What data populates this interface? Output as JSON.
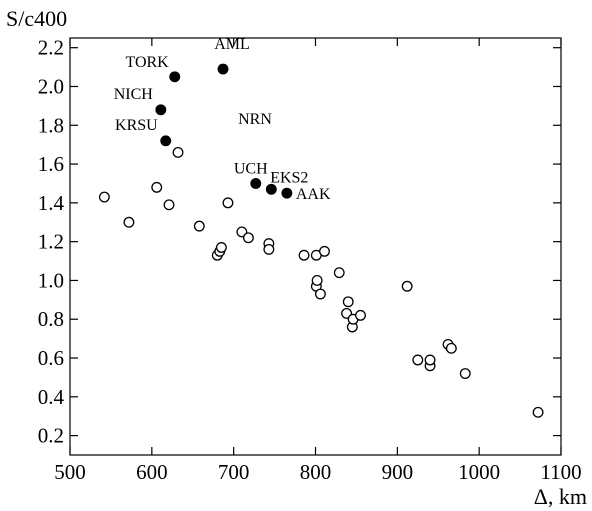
{
  "chart_data": {
    "type": "scatter",
    "ylabel": "S/c400",
    "xlabel": "Δ, km",
    "xlim": [
      500,
      1100
    ],
    "ylim": [
      0.1,
      2.25
    ],
    "xticks": [
      "500",
      "600",
      "700",
      "800",
      "900",
      "1000",
      "1100"
    ],
    "yticks": [
      "0.2",
      "0.4",
      "0.6",
      "0.8",
      "1.0",
      "1.2",
      "1.4",
      "1.6",
      "1.8",
      "2.0",
      "2.2"
    ],
    "grid": false,
    "series": [
      {
        "marker": "filled-circle",
        "points": [
          {
            "x": 628,
            "y": 2.05
          },
          {
            "x": 687,
            "y": 2.09
          },
          {
            "x": 611,
            "y": 1.88
          },
          {
            "x": 617,
            "y": 1.72
          },
          {
            "x": 727,
            "y": 1.5
          },
          {
            "x": 746,
            "y": 1.47
          },
          {
            "x": 765,
            "y": 1.45
          }
        ]
      },
      {
        "marker": "open-circle",
        "points": [
          {
            "x": 542,
            "y": 1.43
          },
          {
            "x": 572,
            "y": 1.3
          },
          {
            "x": 606,
            "y": 1.48
          },
          {
            "x": 621,
            "y": 1.39
          },
          {
            "x": 632,
            "y": 1.66
          },
          {
            "x": 658,
            "y": 1.28
          },
          {
            "x": 680,
            "y": 1.13
          },
          {
            "x": 683,
            "y": 1.15
          },
          {
            "x": 685,
            "y": 1.17
          },
          {
            "x": 693,
            "y": 1.4
          },
          {
            "x": 710,
            "y": 1.25
          },
          {
            "x": 718,
            "y": 1.22
          },
          {
            "x": 743,
            "y": 1.19
          },
          {
            "x": 743,
            "y": 1.16
          },
          {
            "x": 786,
            "y": 1.13
          },
          {
            "x": 801,
            "y": 1.13
          },
          {
            "x": 811,
            "y": 1.15
          },
          {
            "x": 801,
            "y": 0.97
          },
          {
            "x": 802,
            "y": 1.0
          },
          {
            "x": 806,
            "y": 0.93
          },
          {
            "x": 829,
            "y": 1.04
          },
          {
            "x": 838,
            "y": 0.83
          },
          {
            "x": 840,
            "y": 0.89
          },
          {
            "x": 845,
            "y": 0.76
          },
          {
            "x": 846,
            "y": 0.8
          },
          {
            "x": 855,
            "y": 0.82
          },
          {
            "x": 912,
            "y": 0.97
          },
          {
            "x": 925,
            "y": 0.59
          },
          {
            "x": 940,
            "y": 0.56
          },
          {
            "x": 940,
            "y": 0.59
          },
          {
            "x": 962,
            "y": 0.67
          },
          {
            "x": 966,
            "y": 0.65
          },
          {
            "x": 983,
            "y": 0.52
          },
          {
            "x": 1072,
            "y": 0.32
          }
        ]
      }
    ],
    "annotations": [
      {
        "text": "TORK",
        "x": 628,
        "y": 2.05
      },
      {
        "text": "AML",
        "x": 687,
        "y": 2.09
      },
      {
        "text": "NICH",
        "x": 611,
        "y": 1.88
      },
      {
        "text": "NRN",
        "x": 687,
        "y": 1.88
      },
      {
        "text": "KRSU",
        "x": 617,
        "y": 1.72
      },
      {
        "text": "UCH",
        "x": 727,
        "y": 1.5
      },
      {
        "text": "EKS2",
        "x": 746,
        "y": 1.47
      },
      {
        "text": "AAK",
        "x": 765,
        "y": 1.45
      }
    ]
  }
}
